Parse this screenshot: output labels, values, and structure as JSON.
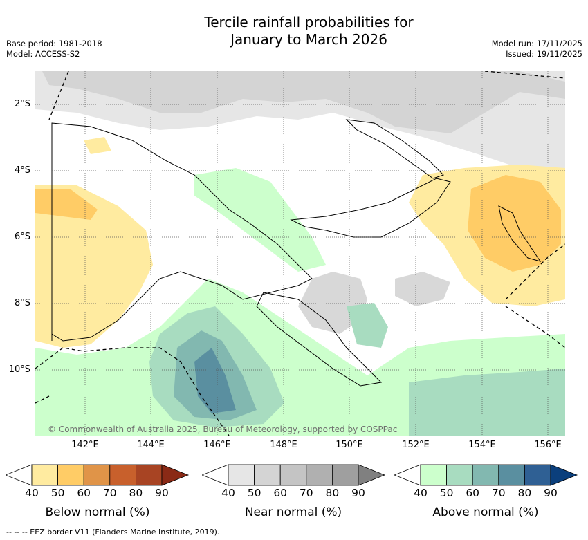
{
  "title": {
    "line1": "Tercile rainfall probabilities for",
    "line2": "January to March 2026"
  },
  "meta": {
    "base_period": "Base period: 1981-2018",
    "model": "Model: ACCESS-S2",
    "model_run": "Model run: 17/11/2025",
    "issued": "Issued: 19/11/2025"
  },
  "map": {
    "lat_labels": [
      "2°S",
      "4°S",
      "6°S",
      "8°S",
      "10°S"
    ],
    "lon_labels": [
      "142°E",
      "144°E",
      "146°E",
      "148°E",
      "150°E",
      "152°E",
      "154°E",
      "156°E"
    ],
    "copyright": "© Commonwealth of Australia 2025, Bureau of Meteorology, supported by COSPPac"
  },
  "colorbars": [
    {
      "id": "below",
      "title": "Below normal (%)",
      "ticks": [
        "40",
        "50",
        "60",
        "70",
        "80",
        "90"
      ],
      "colors": [
        "#ffffff",
        "#ffeba0",
        "#ffcc66",
        "#e09448",
        "#c8602c",
        "#a84423",
        "#8a2a16"
      ]
    },
    {
      "id": "near",
      "title": "Near normal (%)",
      "ticks": [
        "40",
        "50",
        "60",
        "70",
        "80",
        "90"
      ],
      "colors": [
        "#ffffff",
        "#e6e6e6",
        "#d4d4d4",
        "#c4c4c4",
        "#b0b0b0",
        "#9f9f9f",
        "#808080"
      ]
    },
    {
      "id": "above",
      "title": "Above normal (%)",
      "ticks": [
        "40",
        "50",
        "60",
        "70",
        "80",
        "90"
      ],
      "colors": [
        "#ffffff",
        "#ccffcc",
        "#a8dcc0",
        "#82b8b0",
        "#5a8fa0",
        "#2f6094",
        "#0b3f7c"
      ]
    }
  ],
  "footer": "--  --  -- EEZ border V11 (Flanders Marine Institute, 2019)."
}
